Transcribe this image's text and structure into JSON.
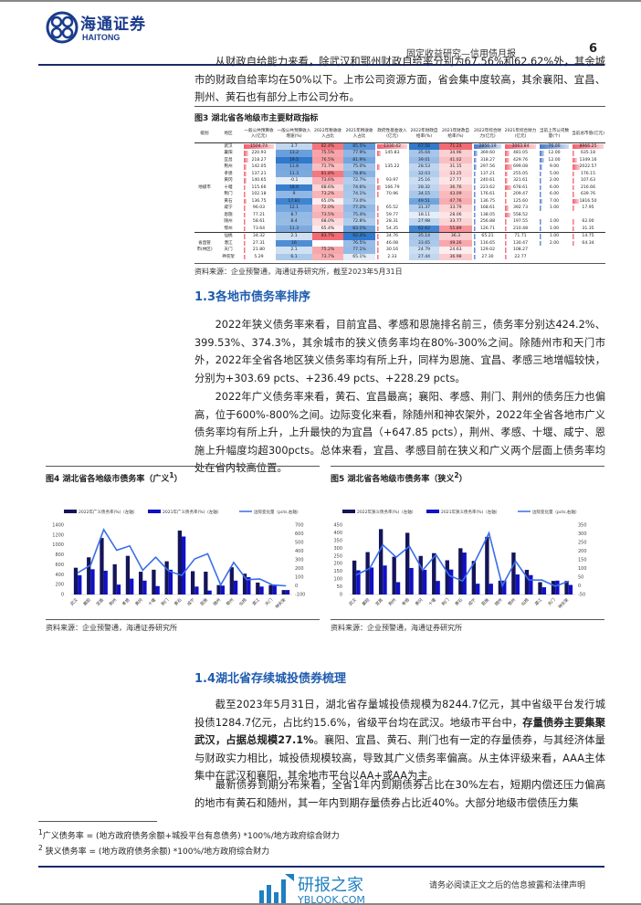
{
  "header": {
    "logo_cn": "海通证券",
    "logo_en": "HAITONG",
    "title": "固定收益研究—信用债月报",
    "page": "6"
  },
  "para1": "从财政自给能力来看，除武汉和鄂州财政自给率分别为67.56%和62.62%外，其余城市的财政自给率均在50%以下。上市公司资源方面，省会集中度较高，其余襄阳、宜昌、荆州、黄石也有部分上市公司分布。",
  "fig3": {
    "title": "图3  湖北省各地级市主要财政指标",
    "headers": [
      "级别",
      "地区",
      "一般公共预算收入(亿元)",
      "一般公共预算收入增速(%)",
      "2022年税收收入占比",
      "2021年税收收入占比",
      "政府性基金收入(亿元)",
      "2022年财政自给率(%)",
      "2021年财政自给率(%)",
      "2022年综合财力(亿元)",
      "2021年综合财力(亿元)",
      "当前上市公司数量(个)",
      "当前总市值(亿元)"
    ],
    "groups": [
      {
        "label": "地级市",
        "rows": 13
      },
      {
        "label": "省直管市(林区)",
        "rows": 4
      }
    ],
    "rows": [
      [
        "武汉",
        "1504.74",
        "3.7",
        "82.4%",
        "85.5%",
        "1330.42",
        "67.56",
        "71.24",
        "2856.19",
        "3063.84",
        "76.00",
        "8966.25"
      ],
      [
        "襄阳",
        "220.93",
        "13.2",
        "75.5%",
        "77.9%",
        "145.83",
        "35.04",
        "34.96",
        "369.60",
        "481.05",
        "12.00",
        "635.18"
      ],
      [
        "宜昌",
        "218.27",
        "19.5",
        "76.5%",
        "81.9%",
        "",
        "39.01",
        "41.02",
        "318.27",
        "429.76",
        "12.00",
        "1349.16"
      ],
      [
        "荆州",
        "142.05",
        "11.8",
        "71.7%",
        "75.0%",
        "135.22",
        "28.53",
        "31.15",
        "297.56",
        "699.08",
        "9.00",
        "2022.57"
      ],
      [
        "孝感",
        "137.21",
        "11.3",
        "81.8%",
        "78.8%",
        "",
        "32.03",
        "33.25",
        "137.21",
        "255.05",
        "5.00",
        "176.15"
      ],
      [
        "黄冈",
        "140.65",
        "-0.1",
        "73.6%",
        "72.7%",
        "93.97",
        "25.16",
        "27.77",
        "240.61",
        "321.61",
        "2.00",
        "107.63"
      ],
      [
        "十堰",
        "115.66",
        "18.6",
        "68.6%",
        "74.6%",
        "166.79",
        "28.32",
        "36.76",
        "223.62",
        "678.61",
        "6.00",
        "216.66"
      ],
      [
        "荆门",
        "102.18",
        "9",
        "73.2%",
        "74.1%",
        "70.96",
        "34.15",
        "43.09",
        "176.61",
        "209.47",
        "6.00",
        "639.76"
      ],
      [
        "黄石",
        "136.75",
        "17.81",
        "65.0%",
        "73.0%",
        "",
        "49.51",
        "47.76",
        "136.75",
        "125.60",
        "7.00",
        "1816.50"
      ],
      [
        "咸宁",
        "96.03",
        "12.1",
        "72.0%",
        "77.2%",
        "65.52",
        "31.37",
        "33.79",
        "168.61",
        "392.73",
        "1.00",
        "17.95"
      ],
      [
        "恩施",
        "77.21",
        "8.7",
        "73.5%",
        "75.4%",
        "59.77",
        "18.11",
        "28.06",
        "138.05",
        "558.52",
        "",
        ""
      ],
      [
        "随州",
        "58.61",
        "8.4",
        "68.0%",
        "72.8%",
        "28.31",
        "27.98",
        "33.77",
        "256.88",
        "197.55",
        "1.00",
        "62.00"
      ],
      [
        "鄂州",
        "73.64",
        "11.3",
        "65.4%",
        "83.1%",
        "54.35",
        "62.62",
        "55.89",
        "126.71",
        "210.48",
        "1.00",
        "31.35"
      ],
      [
        "仙桃",
        "34.32",
        "2.1",
        "83.7%",
        "92.4%",
        "34.76",
        "35.14",
        "36.3",
        "65.21",
        "71.71",
        "1.00",
        "14.75"
      ],
      [
        "潜江",
        "27.31",
        "16",
        "",
        "76.5%",
        "46.08",
        "33.65",
        "49.26",
        "116.65",
        "130.47",
        "2.00",
        "64.34"
      ],
      [
        "天门",
        "21.80",
        "2.1",
        "75.2%",
        "77.1%",
        "30.16",
        "24.79",
        "24.63",
        "129.02",
        "108.27",
        "",
        ""
      ],
      [
        "神农架",
        "5.29",
        "6.1",
        "73.7%",
        "65.1%",
        "2.33",
        "27.44",
        "36.98",
        "27.30",
        "22.77",
        "",
        ""
      ]
    ],
    "source": "资料来源：企业预警通，海通证券研究所，截至2023年5月31日"
  },
  "h13": "1.3各地市债务率排序",
  "para2": "2022年狭义债务率来看，目前宜昌、孝感和恩施排名前三，债务率分别达424.2%、399.53%、374.3%，其余城市的狭义债务率均在80%-300%之间。除随州市和天门市外，2022年全省各地区狭义债务率均有所上升，同样为恩施、宜昌、孝感三地增幅较快，分别为+303.69 pcts、+236.49 pcts、+228.29 pcts。",
  "para3": "2022年广义债务率来看，黄石、宜昌最高；襄阳、孝感、荆门、荆州的债务压力也偏高，位于600%-800%之间。边际变化来看，除随州和神农架外，2022年全省各地市广义债务率均有所上升，上升最快的为宜昌（+647.85 pcts），荆州、孝感、十堰、咸宁、恩施上升幅度均超300pcts。总体来看，宜昌、孝感目前在狭义和广义两个层面上债务率均处在省内较高位置。",
  "fig4": {
    "title": "图4  湖北省各地级市债务率（广义",
    "sup": "1",
    "title_end": "）"
  },
  "fig5": {
    "title": "图5  湖北省各地级市债务率（狭义",
    "sup": "2",
    "title_end": "）"
  },
  "fig_source": "资料来源：企业预警通，海通证券研究所",
  "chart_data": [
    {
      "type": "bar",
      "categories": [
        "武汉",
        "襄阳",
        "宜昌",
        "荆州",
        "孝感",
        "黄冈",
        "十堰",
        "荆门",
        "黄石",
        "咸宁",
        "恩施",
        "随州",
        "鄂州",
        "仙桃",
        "潜江",
        "天门",
        "神农架"
      ],
      "series": [
        {
          "name": "2022年广义债务率(%)（左轴）",
          "type": "bar",
          "axis": "left",
          "color": "#14145a",
          "values": [
            540,
            750,
            1140,
            610,
            780,
            460,
            500,
            670,
            1290,
            470,
            460,
            190,
            550,
            420,
            240,
            190,
            90
          ]
        },
        {
          "name": "2021年广义债务率(%)（左轴）",
          "type": "bar",
          "axis": "left",
          "color": "#1010c8",
          "values": [
            390,
            510,
            480,
            200,
            320,
            280,
            170,
            500,
            1170,
            160,
            80,
            180,
            280,
            350,
            160,
            180,
            90
          ]
        },
        {
          "name": "边际变化量（pcts,右轴）",
          "type": "line",
          "axis": "right",
          "color": "#3a6ee8",
          "values": [
            150,
            240,
            648,
            410,
            460,
            180,
            330,
            170,
            120,
            310,
            370,
            10,
            270,
            70,
            80,
            10,
            0
          ]
        }
      ],
      "ylim_left": [
        0,
        1400
      ],
      "yticks_left": [
        0,
        200,
        400,
        600,
        800,
        1000,
        1200,
        1400
      ],
      "ylim_right": [
        -100,
        700
      ],
      "yticks_right": [
        -100,
        0,
        100,
        200,
        300,
        400,
        500,
        600,
        700
      ],
      "legend": "top"
    },
    {
      "type": "bar",
      "categories": [
        "武汉",
        "襄阳",
        "宜昌",
        "荆州",
        "孝感",
        "黄冈",
        "十堰",
        "荆门",
        "黄石",
        "咸宁",
        "恩施",
        "随州",
        "鄂州",
        "仙桃",
        "潜江",
        "天门",
        "神农架"
      ],
      "series": [
        {
          "name": "2022年狭义债务率(%)（左轴）",
          "type": "bar",
          "axis": "left",
          "color": "#14145a",
          "values": [
            220,
            275,
            424,
            245,
            400,
            250,
            268,
            222,
            300,
            218,
            374,
            90,
            272,
            160,
            80,
            88,
            88
          ]
        },
        {
          "name": "2021年狭义债务率(%)（左轴）",
          "type": "bar",
          "axis": "left",
          "color": "#1010c8",
          "values": [
            157,
            175,
            188,
            80,
            172,
            160,
            88,
            162,
            272,
            70,
            70,
            90,
            130,
            126,
            47,
            90,
            62
          ]
        },
        {
          "name": "边际变化量（pcts,右轴）",
          "type": "line",
          "axis": "right",
          "color": "#3a6ee8",
          "values": [
            63,
            100,
            236,
            165,
            228,
            90,
            180,
            60,
            28,
            148,
            304,
            0,
            142,
            34,
            33,
            -2,
            26
          ]
        }
      ],
      "ylim_left": [
        0,
        450
      ],
      "yticks_left": [
        0,
        50,
        100,
        150,
        200,
        250,
        300,
        350,
        400,
        450
      ],
      "ylim_right": [
        -50,
        350
      ],
      "yticks_right": [
        -50,
        0,
        50,
        100,
        150,
        200,
        250,
        300,
        350
      ],
      "legend": "top"
    }
  ],
  "h14": "1.4湖北省存续城投债券梳理",
  "para4a": "截至2023年5月31日，湖北省存量城投债规模为8244.7亿元，其中省级平台发行城投债1284.7亿元，占比约15.6%，省级平台均在武汉。地级市平台中，",
  "para4b": "存量债券主要集聚武汉，占据总规模27.1%",
  "para4c": "。襄阳、宜昌、黄石、荆门也有一定的存量债券，与其经济体量与财政实力相比，城投债规模较高，导致其广义债务率偏高。从主体评级来看，AAA主体集中在武汉和襄阳，其余地市平台以AA+或AA为主。",
  "para5": "最新债券到期分布来看，全省1年内到期债券占比在30%左右，短期内偿还压力偏高的地市有黄石和随州，其一年内到期存量债券占比近40%。大部分地级市偿债压力集",
  "footnotes": [
    {
      "mark": "1",
      "text": "广义债务率 = (地方政府债务余额+城投平台有息债务) *100%/地方政府综合财力"
    },
    {
      "mark": "2",
      "text": "狭义债务率 = (地方政府债务余额) *100%/地方政府综合财力"
    }
  ],
  "disclaimer": "请务必阅读正文之后的信息披露和法律声明",
  "watermark": {
    "cn": "研报之家",
    "en": "YBLOOK.COM"
  }
}
